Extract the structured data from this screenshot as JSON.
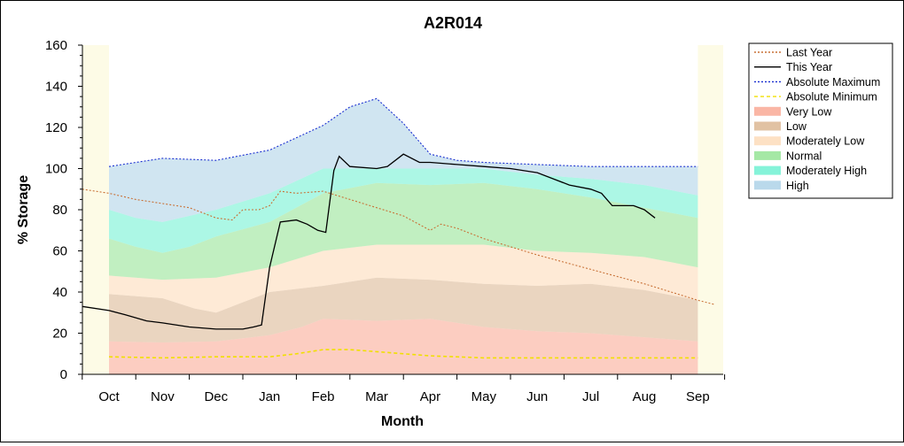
{
  "chart_data": {
    "type": "area",
    "title": "A2R014",
    "xlabel": "Month",
    "ylabel": "% Storage",
    "ylim": [
      0,
      160
    ],
    "yticks": [
      "0",
      "20",
      "40",
      "60",
      "80",
      "100",
      "120",
      "140",
      "160"
    ],
    "categories": [
      "Oct",
      "Nov",
      "Dec",
      "Jan",
      "Feb",
      "Mar",
      "Apr",
      "May",
      "Jun",
      "Jul",
      "Aug",
      "Sep"
    ],
    "x_unit": "month index (0 = Oct)",
    "legend_position": "right",
    "bands": [
      {
        "name": "Very Low",
        "color": "#f9a48e",
        "lower": [
          [
            0,
            0
          ],
          [
            1,
            0
          ],
          [
            2,
            0
          ],
          [
            3,
            0
          ],
          [
            4,
            0
          ],
          [
            5,
            0
          ],
          [
            6,
            0
          ],
          [
            7,
            0
          ],
          [
            8,
            0
          ],
          [
            9,
            0
          ],
          [
            10,
            0
          ],
          [
            11,
            0
          ]
        ],
        "upper": [
          [
            0,
            16
          ],
          [
            1,
            15.5
          ],
          [
            2,
            16
          ],
          [
            3,
            19
          ],
          [
            3.6,
            23
          ],
          [
            4,
            27
          ],
          [
            5,
            26
          ],
          [
            6,
            27
          ],
          [
            7,
            23
          ],
          [
            8,
            21
          ],
          [
            9,
            20
          ],
          [
            10,
            18
          ],
          [
            11,
            16
          ]
        ]
      },
      {
        "name": "Low",
        "color": "#d9b38c",
        "lower": [
          [
            0,
            16
          ],
          [
            1,
            15.5
          ],
          [
            2,
            16
          ],
          [
            3,
            19
          ],
          [
            3.6,
            23
          ],
          [
            4,
            27
          ],
          [
            5,
            26
          ],
          [
            6,
            27
          ],
          [
            7,
            23
          ],
          [
            8,
            21
          ],
          [
            9,
            20
          ],
          [
            10,
            18
          ],
          [
            11,
            16
          ]
        ],
        "upper": [
          [
            0,
            39
          ],
          [
            1,
            37
          ],
          [
            1.6,
            32
          ],
          [
            2,
            30
          ],
          [
            2.4,
            34
          ],
          [
            3,
            40
          ],
          [
            4,
            43
          ],
          [
            5,
            47
          ],
          [
            6,
            46
          ],
          [
            7,
            44
          ],
          [
            8,
            43
          ],
          [
            9,
            44
          ],
          [
            10,
            41
          ],
          [
            11,
            36
          ]
        ]
      },
      {
        "name": "Moderately Low",
        "color": "#fdd9b5",
        "lower": [
          [
            0,
            39
          ],
          [
            1,
            37
          ],
          [
            1.6,
            32
          ],
          [
            2,
            30
          ],
          [
            2.4,
            34
          ],
          [
            3,
            40
          ],
          [
            4,
            43
          ],
          [
            5,
            47
          ],
          [
            6,
            46
          ],
          [
            7,
            44
          ],
          [
            8,
            43
          ],
          [
            9,
            44
          ],
          [
            10,
            41
          ],
          [
            11,
            36
          ]
        ],
        "upper": [
          [
            0,
            48
          ],
          [
            1,
            46
          ],
          [
            2,
            47
          ],
          [
            3,
            52
          ],
          [
            4,
            60
          ],
          [
            5,
            63
          ],
          [
            6,
            63
          ],
          [
            7,
            63
          ],
          [
            8,
            60
          ],
          [
            9,
            59
          ],
          [
            10,
            57
          ],
          [
            11,
            52
          ]
        ]
      },
      {
        "name": "Normal",
        "color": "#8ee28e",
        "lower": [
          [
            0,
            48
          ],
          [
            1,
            46
          ],
          [
            2,
            47
          ],
          [
            3,
            52
          ],
          [
            4,
            60
          ],
          [
            5,
            63
          ],
          [
            6,
            63
          ],
          [
            7,
            63
          ],
          [
            8,
            60
          ],
          [
            9,
            59
          ],
          [
            10,
            57
          ],
          [
            11,
            52
          ]
        ],
        "upper": [
          [
            0,
            66
          ],
          [
            0.5,
            62
          ],
          [
            1,
            59
          ],
          [
            1.5,
            62
          ],
          [
            2,
            67
          ],
          [
            3,
            74
          ],
          [
            4,
            88
          ],
          [
            5,
            93
          ],
          [
            6,
            92
          ],
          [
            7,
            93
          ],
          [
            8,
            90
          ],
          [
            9,
            86
          ],
          [
            10,
            81
          ],
          [
            11,
            76
          ]
        ]
      },
      {
        "name": "Moderately High",
        "color": "#67f0cf",
        "lower": [
          [
            0,
            66
          ],
          [
            0.5,
            62
          ],
          [
            1,
            59
          ],
          [
            1.5,
            62
          ],
          [
            2,
            67
          ],
          [
            3,
            74
          ],
          [
            4,
            88
          ],
          [
            5,
            93
          ],
          [
            6,
            92
          ],
          [
            7,
            93
          ],
          [
            8,
            90
          ],
          [
            9,
            86
          ],
          [
            10,
            81
          ],
          [
            11,
            76
          ]
        ],
        "upper": [
          [
            0,
            80
          ],
          [
            0.5,
            76
          ],
          [
            1,
            74
          ],
          [
            2,
            80
          ],
          [
            3,
            88
          ],
          [
            4,
            100
          ],
          [
            5,
            100
          ],
          [
            6,
            100
          ],
          [
            7,
            100
          ],
          [
            8,
            97
          ],
          [
            9,
            95
          ],
          [
            10,
            92
          ],
          [
            11,
            87
          ]
        ]
      },
      {
        "name": "High",
        "color": "#a9cfe6",
        "lower": [
          [
            0,
            80
          ],
          [
            0.5,
            76
          ],
          [
            1,
            74
          ],
          [
            2,
            80
          ],
          [
            3,
            88
          ],
          [
            4,
            100
          ],
          [
            5,
            100
          ],
          [
            6,
            100
          ],
          [
            7,
            100
          ],
          [
            8,
            97
          ],
          [
            9,
            95
          ],
          [
            10,
            92
          ],
          [
            11,
            87
          ]
        ],
        "upper": [
          [
            0,
            101
          ],
          [
            1,
            105
          ],
          [
            2,
            104
          ],
          [
            3,
            109
          ],
          [
            4,
            121
          ],
          [
            4.5,
            130
          ],
          [
            5,
            134
          ],
          [
            5.5,
            122
          ],
          [
            6,
            107
          ],
          [
            6.5,
            104
          ],
          [
            7,
            103
          ],
          [
            8,
            102
          ],
          [
            9,
            101
          ],
          [
            10,
            101
          ],
          [
            11,
            101
          ]
        ]
      }
    ],
    "series": [
      {
        "name": "Last Year",
        "color": "#c87137",
        "style": "dotted",
        "points": [
          [
            -0.5,
            90
          ],
          [
            0,
            88
          ],
          [
            0.5,
            85
          ],
          [
            1,
            83
          ],
          [
            1.5,
            81
          ],
          [
            2,
            76
          ],
          [
            2.3,
            75
          ],
          [
            2.5,
            80
          ],
          [
            2.8,
            80
          ],
          [
            3,
            82
          ],
          [
            3.2,
            89
          ],
          [
            3.5,
            88
          ],
          [
            4,
            89
          ],
          [
            4.5,
            85
          ],
          [
            5,
            81
          ],
          [
            5.5,
            77
          ],
          [
            6,
            70
          ],
          [
            6.2,
            73
          ],
          [
            6.5,
            71
          ],
          [
            7,
            66
          ],
          [
            8,
            58
          ],
          [
            9,
            51
          ],
          [
            10,
            44
          ],
          [
            10.5,
            40
          ],
          [
            11,
            36
          ],
          [
            11.3,
            34
          ]
        ]
      },
      {
        "name": "This Year",
        "color": "#000000",
        "style": "solid",
        "points": [
          [
            -0.5,
            33
          ],
          [
            0,
            31
          ],
          [
            0.3,
            29
          ],
          [
            0.7,
            26
          ],
          [
            1,
            25
          ],
          [
            1.5,
            23
          ],
          [
            2,
            22
          ],
          [
            2.5,
            22
          ],
          [
            2.7,
            23
          ],
          [
            2.85,
            24
          ],
          [
            3,
            52
          ],
          [
            3.2,
            74
          ],
          [
            3.5,
            75
          ],
          [
            3.7,
            73
          ],
          [
            3.9,
            70
          ],
          [
            4.05,
            69
          ],
          [
            4.2,
            99
          ],
          [
            4.3,
            106
          ],
          [
            4.5,
            101
          ],
          [
            5,
            100
          ],
          [
            5.2,
            101
          ],
          [
            5.5,
            107
          ],
          [
            5.8,
            103
          ],
          [
            6,
            103
          ],
          [
            6.5,
            102
          ],
          [
            7,
            101
          ],
          [
            7.5,
            100
          ],
          [
            8,
            98
          ],
          [
            8.3,
            95
          ],
          [
            8.6,
            92
          ],
          [
            9,
            90
          ],
          [
            9.2,
            88
          ],
          [
            9.4,
            82
          ],
          [
            9.8,
            82
          ],
          [
            10,
            80
          ],
          [
            10.2,
            76
          ]
        ]
      },
      {
        "name": "Absolute Maximum",
        "color": "#1a2fd0",
        "style": "dotted",
        "points": [
          [
            0,
            101
          ],
          [
            1,
            105
          ],
          [
            2,
            104
          ],
          [
            3,
            109
          ],
          [
            4,
            121
          ],
          [
            4.5,
            130
          ],
          [
            5,
            134
          ],
          [
            5.5,
            122
          ],
          [
            6,
            107
          ],
          [
            6.5,
            104
          ],
          [
            7,
            103
          ],
          [
            8,
            102
          ],
          [
            9,
            101
          ],
          [
            10,
            101
          ],
          [
            11,
            101
          ]
        ]
      },
      {
        "name": "Absolute Minimum",
        "color": "#f0e000",
        "style": "dashed",
        "points": [
          [
            0,
            8.5
          ],
          [
            1,
            8
          ],
          [
            2,
            8.5
          ],
          [
            3,
            8.5
          ],
          [
            3.5,
            10
          ],
          [
            4,
            12
          ],
          [
            4.5,
            12
          ],
          [
            5,
            11
          ],
          [
            6,
            9
          ],
          [
            7,
            8
          ],
          [
            8,
            8
          ],
          [
            9,
            8
          ],
          [
            10,
            8
          ],
          [
            11,
            8
          ]
        ]
      }
    ]
  },
  "legend": [
    {
      "label": "Last Year",
      "kind": "line",
      "color": "#c87137",
      "style": "dotted"
    },
    {
      "label": "This Year",
      "kind": "line",
      "color": "#000000",
      "style": "solid"
    },
    {
      "label": "Absolute Maximum",
      "kind": "line",
      "color": "#1a2fd0",
      "style": "dotted"
    },
    {
      "label": "Absolute Minimum",
      "kind": "line",
      "color": "#f0e000",
      "style": "dashed"
    },
    {
      "label": "Very Low",
      "kind": "fill",
      "color": "#f9a48e"
    },
    {
      "label": "Low",
      "kind": "fill",
      "color": "#d9b38c"
    },
    {
      "label": "Moderately Low",
      "kind": "fill",
      "color": "#fdd9b5"
    },
    {
      "label": "Normal",
      "kind": "fill",
      "color": "#8ee28e"
    },
    {
      "label": "Moderately High",
      "kind": "fill",
      "color": "#67f0cf"
    },
    {
      "label": "High",
      "kind": "fill",
      "color": "#a9cfe6"
    }
  ]
}
